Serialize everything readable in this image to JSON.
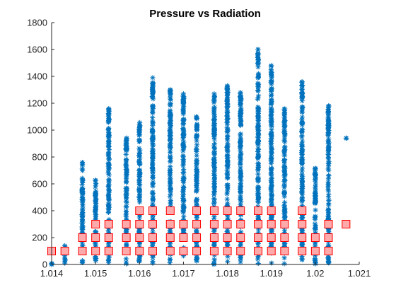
{
  "chart_data": {
    "type": "scatter",
    "title": "Pressure vs Radiation",
    "xlabel": "",
    "ylabel": "",
    "xlim": [
      1.014,
      1.021
    ],
    "ylim": [
      0,
      1800
    ],
    "xticks": [
      1.014,
      1.015,
      1.016,
      1.017,
      1.018,
      1.019,
      1.02,
      1.021
    ],
    "xtick_labels": [
      "1.014",
      "1.015",
      "1.016",
      "1.017",
      "1.018",
      "1.019",
      "1.02",
      "1.021"
    ],
    "yticks": [
      0,
      200,
      400,
      600,
      800,
      1000,
      1200,
      1400,
      1600,
      1800
    ],
    "ytick_labels": [
      "0",
      "200",
      "400",
      "600",
      "800",
      "1000",
      "1200",
      "1400",
      "1600",
      "1800"
    ],
    "grid": false,
    "series": [
      {
        "marker": "asterisk",
        "color": "#0072bd",
        "columns": [
          {
            "x": 1.014,
            "ymin": 0,
            "ymax": 10
          },
          {
            "x": 1.0143,
            "ymin": 0,
            "ymax": 140
          },
          {
            "x": 1.0147,
            "ymin": 0,
            "ymax": 760
          },
          {
            "x": 1.015,
            "ymin": 0,
            "ymax": 640
          },
          {
            "x": 1.0153,
            "ymin": 0,
            "ymax": 1160
          },
          {
            "x": 1.0157,
            "ymin": 0,
            "ymax": 950
          },
          {
            "x": 1.016,
            "ymin": 0,
            "ymax": 1060
          },
          {
            "x": 1.0163,
            "ymin": 0,
            "ymax": 1390
          },
          {
            "x": 1.0167,
            "ymin": 0,
            "ymax": 1300
          },
          {
            "x": 1.017,
            "ymin": 0,
            "ymax": 1270
          },
          {
            "x": 1.0173,
            "ymin": 0,
            "ymax": 1110
          },
          {
            "x": 1.0177,
            "ymin": 0,
            "ymax": 1270
          },
          {
            "x": 1.018,
            "ymin": 0,
            "ymax": 1330
          },
          {
            "x": 1.0183,
            "ymin": 0,
            "ymax": 1280
          },
          {
            "x": 1.0187,
            "ymin": 0,
            "ymax": 1600
          },
          {
            "x": 1.019,
            "ymin": 0,
            "ymax": 1480
          },
          {
            "x": 1.0193,
            "ymin": 0,
            "ymax": 1160
          },
          {
            "x": 1.0197,
            "ymin": 0,
            "ymax": 1360
          },
          {
            "x": 1.02,
            "ymin": 0,
            "ymax": 720
          },
          {
            "x": 1.0203,
            "ymin": 0,
            "ymax": 1180
          },
          {
            "x": 1.0207,
            "ymin": 940,
            "ymax": 940
          }
        ],
        "points": [
          {
            "x": 1.0153,
            "y": 1160
          },
          {
            "x": 1.0153,
            "y": 1150
          },
          {
            "x": 1.0153,
            "y": 1110
          },
          {
            "x": 1.0163,
            "y": 1390
          },
          {
            "x": 1.0167,
            "y": 1300
          },
          {
            "x": 1.0167,
            "y": 1270
          },
          {
            "x": 1.017,
            "y": 1270
          },
          {
            "x": 1.0177,
            "y": 1270
          },
          {
            "x": 1.018,
            "y": 1330
          },
          {
            "x": 1.0183,
            "y": 1280
          },
          {
            "x": 1.0187,
            "y": 1600
          },
          {
            "x": 1.019,
            "y": 1480
          },
          {
            "x": 1.019,
            "y": 1420
          },
          {
            "x": 1.0197,
            "y": 1360
          },
          {
            "x": 1.0197,
            "y": 1250
          },
          {
            "x": 1.0203,
            "y": 1180
          },
          {
            "x": 1.0203,
            "y": 1060
          },
          {
            "x": 1.0207,
            "y": 940
          },
          {
            "x": 1.0147,
            "y": 760
          },
          {
            "x": 1.0147,
            "y": 710
          },
          {
            "x": 1.0143,
            "y": 140
          },
          {
            "x": 1.014,
            "y": 0
          },
          {
            "x": 1.0143,
            "y": 10
          },
          {
            "x": 1.0197,
            "y": 1050
          }
        ]
      },
      {
        "marker": "square",
        "color": "#ff0000",
        "fill": "#ffaaaa",
        "points": [
          {
            "x": 1.014,
            "y": 100
          },
          {
            "x": 1.0143,
            "y": 100
          },
          {
            "x": 1.0147,
            "y": 100
          },
          {
            "x": 1.0147,
            "y": 200
          },
          {
            "x": 1.015,
            "y": 100
          },
          {
            "x": 1.015,
            "y": 200
          },
          {
            "x": 1.015,
            "y": 300
          },
          {
            "x": 1.0153,
            "y": 100
          },
          {
            "x": 1.0153,
            "y": 200
          },
          {
            "x": 1.0153,
            "y": 300
          },
          {
            "x": 1.0157,
            "y": 100
          },
          {
            "x": 1.0157,
            "y": 200
          },
          {
            "x": 1.0157,
            "y": 300
          },
          {
            "x": 1.016,
            "y": 100
          },
          {
            "x": 1.016,
            "y": 200
          },
          {
            "x": 1.016,
            "y": 300
          },
          {
            "x": 1.016,
            "y": 400
          },
          {
            "x": 1.0163,
            "y": 100
          },
          {
            "x": 1.0163,
            "y": 200
          },
          {
            "x": 1.0163,
            "y": 300
          },
          {
            "x": 1.0163,
            "y": 400
          },
          {
            "x": 1.0167,
            "y": 100
          },
          {
            "x": 1.0167,
            "y": 200
          },
          {
            "x": 1.0167,
            "y": 300
          },
          {
            "x": 1.0167,
            "y": 400
          },
          {
            "x": 1.017,
            "y": 100
          },
          {
            "x": 1.017,
            "y": 200
          },
          {
            "x": 1.017,
            "y": 300
          },
          {
            "x": 1.0173,
            "y": 100
          },
          {
            "x": 1.0173,
            "y": 200
          },
          {
            "x": 1.0173,
            "y": 300
          },
          {
            "x": 1.0173,
            "y": 400
          },
          {
            "x": 1.0177,
            "y": 100
          },
          {
            "x": 1.0177,
            "y": 200
          },
          {
            "x": 1.0177,
            "y": 300
          },
          {
            "x": 1.0177,
            "y": 400
          },
          {
            "x": 1.018,
            "y": 100
          },
          {
            "x": 1.018,
            "y": 200
          },
          {
            "x": 1.018,
            "y": 300
          },
          {
            "x": 1.018,
            "y": 400
          },
          {
            "x": 1.0183,
            "y": 100
          },
          {
            "x": 1.0183,
            "y": 200
          },
          {
            "x": 1.0183,
            "y": 300
          },
          {
            "x": 1.0183,
            "y": 400
          },
          {
            "x": 1.0187,
            "y": 100
          },
          {
            "x": 1.0187,
            "y": 200
          },
          {
            "x": 1.0187,
            "y": 300
          },
          {
            "x": 1.0187,
            "y": 400
          },
          {
            "x": 1.019,
            "y": 100
          },
          {
            "x": 1.019,
            "y": 200
          },
          {
            "x": 1.019,
            "y": 300
          },
          {
            "x": 1.019,
            "y": 400
          },
          {
            "x": 1.0193,
            "y": 100
          },
          {
            "x": 1.0193,
            "y": 200
          },
          {
            "x": 1.0193,
            "y": 300
          },
          {
            "x": 1.0197,
            "y": 100
          },
          {
            "x": 1.0197,
            "y": 200
          },
          {
            "x": 1.0197,
            "y": 300
          },
          {
            "x": 1.0197,
            "y": 400
          },
          {
            "x": 1.02,
            "y": 100
          },
          {
            "x": 1.02,
            "y": 200
          },
          {
            "x": 1.0203,
            "y": 100
          },
          {
            "x": 1.0203,
            "y": 200
          },
          {
            "x": 1.0203,
            "y": 300
          },
          {
            "x": 1.0207,
            "y": 300
          }
        ]
      }
    ]
  }
}
